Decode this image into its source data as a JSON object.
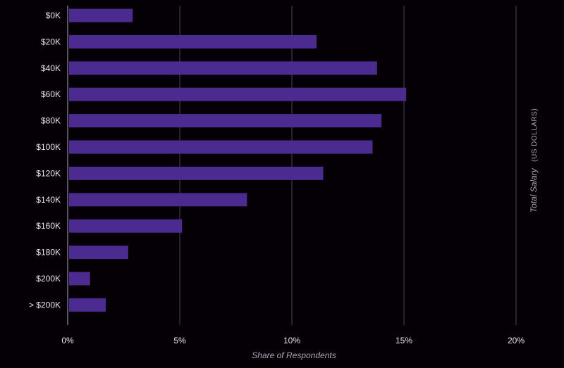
{
  "chart_data": {
    "type": "bar",
    "orientation": "horizontal",
    "categories": [
      "$0K",
      "$20K",
      "$40K",
      "$60K",
      "$80K",
      "$100K",
      "$120K",
      "$140K",
      "$160K",
      "$180K",
      "$200K",
      "> $200K"
    ],
    "values": [
      2.9,
      11.1,
      13.8,
      15.1,
      14.0,
      13.6,
      11.4,
      8.0,
      5.1,
      2.7,
      1.0,
      1.7
    ],
    "xlabel": "Share of Respondents",
    "ylabel_main": "Total Salary",
    "ylabel_sub": "(US DOLLARS)",
    "xlim": [
      0,
      20
    ],
    "xticks": [
      0,
      5,
      10,
      15,
      20
    ],
    "xtick_labels": [
      "0%",
      "5%",
      "10%",
      "15%",
      "20%"
    ],
    "grid": true,
    "colors": {
      "bar": "#4b2b8f",
      "background": "#050005",
      "grid": "#4a4550"
    }
  }
}
